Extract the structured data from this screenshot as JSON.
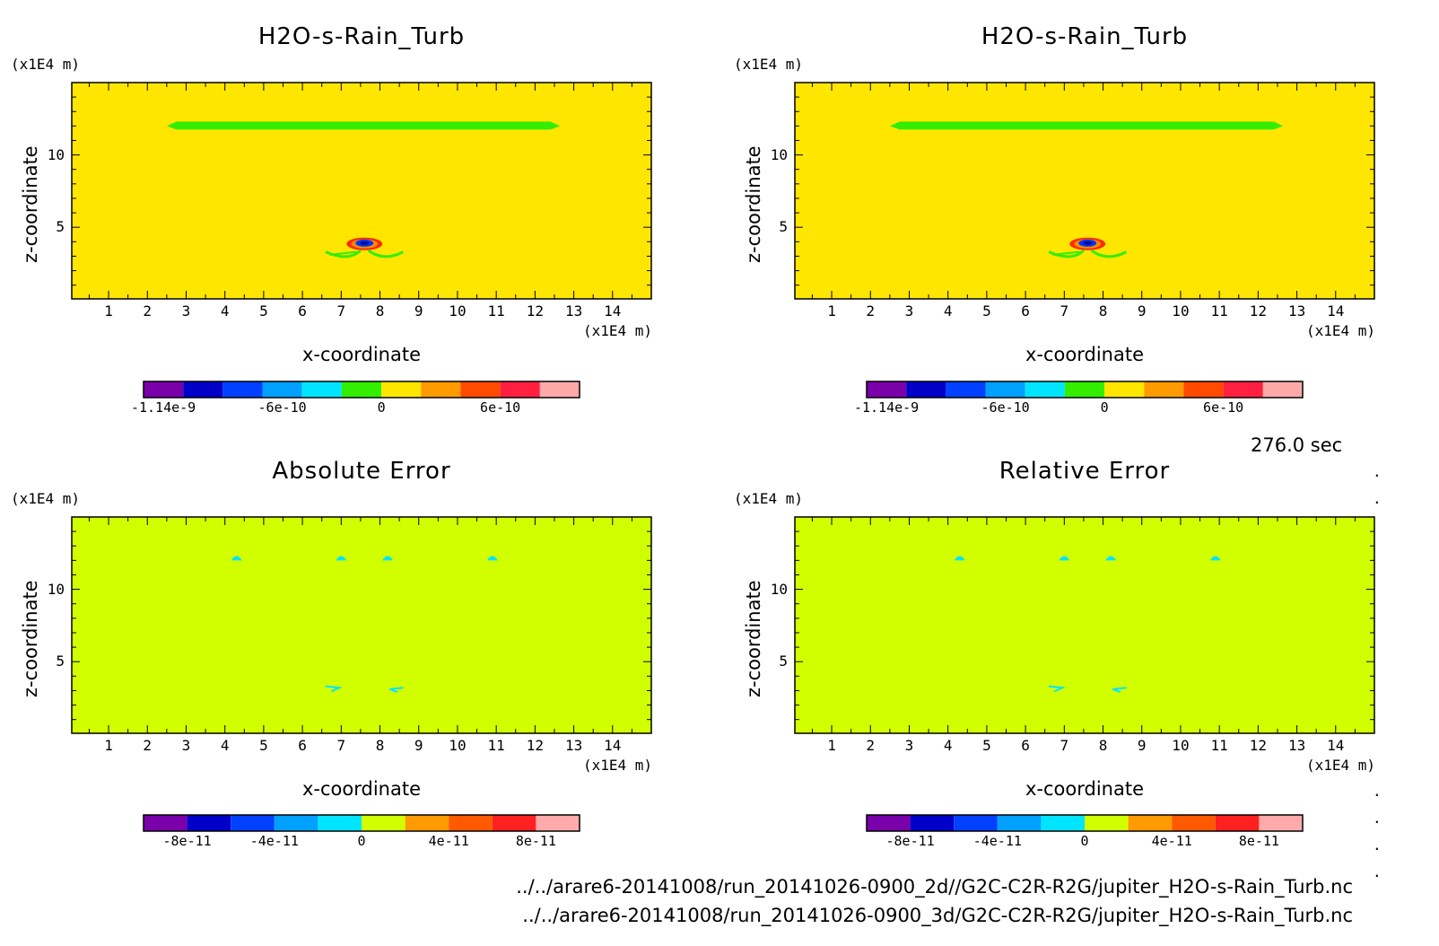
{
  "time_label": "276.0 sec",
  "files": [
    "../../arare6-20141008/run_20141026-0900_2d//G2C-C2R-R2G/jupiter_H2O-s-Rain_Turb.nc",
    "../../arare6-20141008/run_20141026-0900_3d/G2C-C2R-R2G/jupiter_H2O-s-Rain_Turb.nc"
  ],
  "colors": {
    "yellow_field": "#ffe600",
    "lime_field": "#d2ff00",
    "green": "#33ee00",
    "cyan": "#00e5ff",
    "blue": "#0033ff",
    "red": "#ff2a00",
    "orange": "#ff8c00"
  },
  "chart_data": [
    {
      "type": "heatmap",
      "title": "H2O-s-Rain_Turb",
      "xlabel": "x-coordinate",
      "ylabel": "z-coordinate",
      "xunit": "(x1E4 m)",
      "yunit": "(x1E4 m)",
      "xlim": [
        0.05,
        15
      ],
      "ylim": [
        0.05,
        15
      ],
      "xticks": [
        1,
        2,
        3,
        4,
        5,
        6,
        7,
        8,
        9,
        10,
        11,
        12,
        13,
        14
      ],
      "yticks": [
        5,
        10
      ],
      "background_color": "#ffe600",
      "features": "green layer near z=12 from x=2.5 to 12.6; small blue/red/orange blob near x=7.6, z=3.8; green arcs near z=3.2",
      "colorbar": {
        "colors": [
          "#7a00aa",
          "#0000c8",
          "#0040ff",
          "#00a0ff",
          "#00e5ff",
          "#33ee00",
          "#ffe600",
          "#ff9a00",
          "#ff4a00",
          "#ff2040",
          "#ffaaaa"
        ],
        "ticks": [
          "-1.14e-9",
          "-6e-10",
          "0",
          "6e-10"
        ]
      }
    },
    {
      "type": "heatmap",
      "title": "H2O-s-Rain_Turb",
      "xlabel": "x-coordinate",
      "ylabel": "z-coordinate",
      "xunit": "(x1E4 m)",
      "yunit": "(x1E4 m)",
      "xlim": [
        0.05,
        15
      ],
      "ylim": [
        0.05,
        15
      ],
      "xticks": [
        1,
        2,
        3,
        4,
        5,
        6,
        7,
        8,
        9,
        10,
        11,
        12,
        13,
        14
      ],
      "yticks": [
        5,
        10
      ],
      "background_color": "#ffe600",
      "features": "green layer near z=12 from x=2.5 to 12.6; small blue/red/orange blob near x=7.6, z=3.8; green arcs near z=3.2",
      "colorbar": {
        "colors": [
          "#7a00aa",
          "#0000c8",
          "#0040ff",
          "#00a0ff",
          "#00e5ff",
          "#33ee00",
          "#ffe600",
          "#ff9a00",
          "#ff4a00",
          "#ff2040",
          "#ffaaaa"
        ],
        "ticks": [
          "-1.14e-9",
          "-6e-10",
          "0",
          "6e-10"
        ]
      }
    },
    {
      "type": "heatmap",
      "title": "Absolute Error",
      "xlabel": "x-coordinate",
      "ylabel": "z-coordinate",
      "xunit": "(x1E4 m)",
      "yunit": "(x1E4 m)",
      "xlim": [
        0.05,
        15
      ],
      "ylim": [
        0.05,
        15
      ],
      "xticks": [
        1,
        2,
        3,
        4,
        5,
        6,
        7,
        8,
        9,
        10,
        11,
        12,
        13,
        14
      ],
      "yticks": [
        5,
        10
      ],
      "background_color": "#d2ff00",
      "features": "small cyan marks near z=12 at x=4.3, 7.0, 8.2, 10.9 and near z=3.2 at x=6.8, 8.4",
      "colorbar": {
        "colors": [
          "#7a00aa",
          "#0000c8",
          "#0040ff",
          "#00a0ff",
          "#00e5ff",
          "#d2ff00",
          "#ff9a00",
          "#ff5a00",
          "#ff2020",
          "#ffaaaa"
        ],
        "ticks": [
          "-8e-11",
          "-4e-11",
          "0",
          "4e-11",
          "8e-11"
        ]
      }
    },
    {
      "type": "heatmap",
      "title": "Relative Error",
      "xlabel": "x-coordinate",
      "ylabel": "z-coordinate",
      "xunit": "(x1E4 m)",
      "yunit": "(x1E4 m)",
      "xlim": [
        0.05,
        15
      ],
      "ylim": [
        0.05,
        15
      ],
      "xticks": [
        1,
        2,
        3,
        4,
        5,
        6,
        7,
        8,
        9,
        10,
        11,
        12,
        13,
        14
      ],
      "yticks": [
        5,
        10
      ],
      "background_color": "#d2ff00",
      "features": "small cyan marks near z=12 at x=4.3, 7.0, 8.2, 10.9 and near z=3.2 at x=6.8, 8.4",
      "colorbar": {
        "colors": [
          "#7a00aa",
          "#0000c8",
          "#0040ff",
          "#00a0ff",
          "#00e5ff",
          "#d2ff00",
          "#ff9a00",
          "#ff5a00",
          "#ff2020",
          "#ffaaaa"
        ],
        "ticks": [
          "-8e-11",
          "-4e-11",
          "0",
          "4e-11",
          "8e-11"
        ]
      }
    }
  ]
}
